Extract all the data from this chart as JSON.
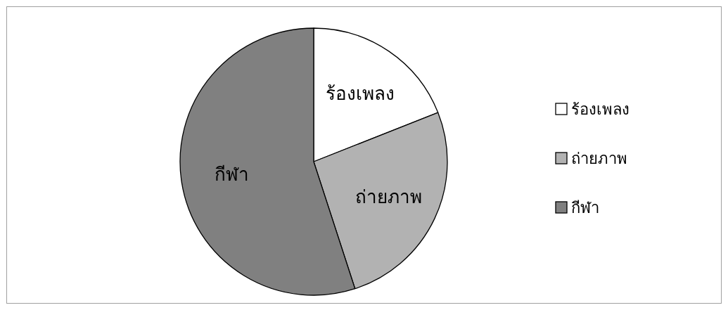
{
  "chart_data": {
    "type": "pie",
    "categories": [
      "ร้องเพลง",
      "ถ่ายภาพ",
      "กีฬา"
    ],
    "values": [
      19,
      26,
      55
    ],
    "colors": [
      "#ffffff",
      "#b2b2b2",
      "#808080"
    ],
    "legend": "right"
  }
}
